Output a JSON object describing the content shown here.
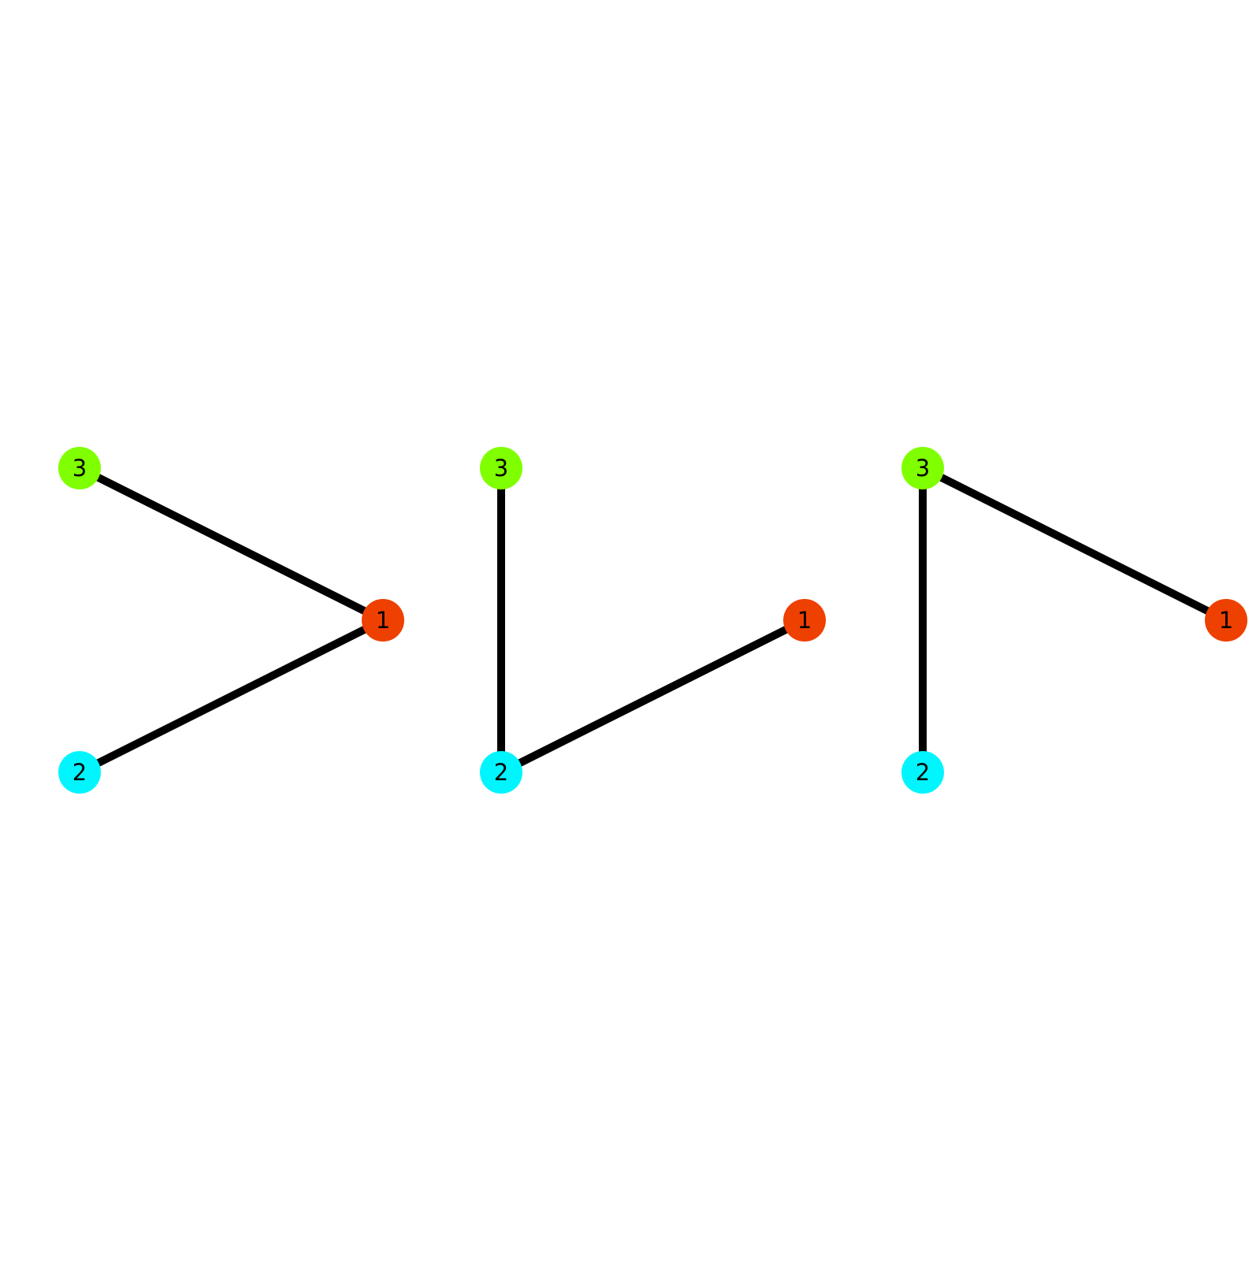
{
  "nodes": {
    "1": {
      "label": "1",
      "color": "#ee4000"
    },
    "2": {
      "label": "2",
      "color": "#00f5ff"
    },
    "3": {
      "label": "3",
      "color": "#7fff00"
    }
  },
  "graphs": [
    {
      "edges": [
        [
          "3",
          "1"
        ],
        [
          "1",
          "2"
        ]
      ]
    },
    {
      "edges": [
        [
          "3",
          "2"
        ],
        [
          "2",
          "1"
        ]
      ]
    },
    {
      "edges": [
        [
          "3",
          "2"
        ],
        [
          "3",
          "1"
        ]
      ]
    }
  ]
}
